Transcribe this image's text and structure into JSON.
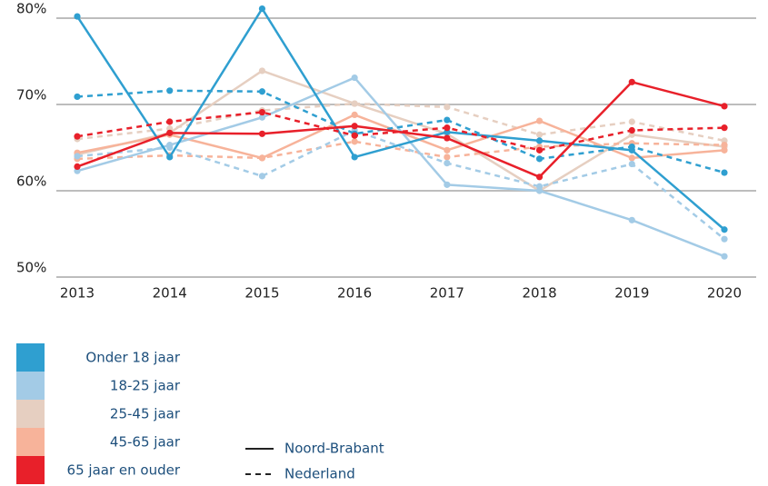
{
  "chart_data": {
    "type": "line",
    "categories": [
      "2013",
      "2014",
      "2015",
      "2016",
      "2017",
      "2018",
      "2019",
      "2020"
    ],
    "ylim": [
      50,
      80
    ],
    "yticks": [
      {
        "value": 50,
        "label": "50%"
      },
      {
        "value": 60,
        "label": "60%"
      },
      {
        "value": 70,
        "label": "70%"
      },
      {
        "value": 80,
        "label": "80%"
      }
    ],
    "grid": true,
    "legend": {
      "groups": [
        {
          "name": "Onder 18 jaar",
          "color": "#2f9fd0"
        },
        {
          "name": "18-25 jaar",
          "color": "#a3cbe6"
        },
        {
          "name": "25-45 jaar",
          "color": "#e6cfc1"
        },
        {
          "name": "45-65 jaar",
          "color": "#f7b39a"
        },
        {
          "name": "65 jaar en ouder",
          "color": "#e8202a"
        }
      ],
      "styles": [
        {
          "name": "Noord-Brabant",
          "dashed": false
        },
        {
          "name": "Nederland",
          "dashed": true
        }
      ]
    },
    "series": [
      {
        "group": 2,
        "style": 1,
        "values": [
          66,
          67.2,
          69.3,
          70.1,
          69.7,
          66.5,
          68,
          65.8
        ]
      },
      {
        "group": 2,
        "style": 0,
        "values": [
          64.2,
          66.7,
          73.9,
          70.1,
          66.6,
          60,
          66.5,
          65.1
        ]
      },
      {
        "group": 3,
        "style": 1,
        "values": [
          63.7,
          64.1,
          63.8,
          65.7,
          63.9,
          65.1,
          65.5,
          65.3
        ]
      },
      {
        "group": 3,
        "style": 0,
        "values": [
          64.4,
          66.5,
          63.8,
          68.8,
          64.7,
          68.1,
          63.8,
          64.7
        ]
      },
      {
        "group": 1,
        "style": 1,
        "values": [
          64,
          65,
          61.7,
          67,
          63.2,
          60.5,
          63.1,
          54.4
        ]
      },
      {
        "group": 1,
        "style": 0,
        "values": [
          62.3,
          65.3,
          68.5,
          73.1,
          60.7,
          60,
          56.6,
          52.4
        ]
      },
      {
        "group": 0,
        "style": 1,
        "values": [
          70.9,
          71.6,
          71.5,
          66.6,
          68.2,
          63.7,
          65.1,
          62.1
        ]
      },
      {
        "group": 0,
        "style": 0,
        "values": [
          80.2,
          63.9,
          81.1,
          63.9,
          66.8,
          65.8,
          64.7,
          55.5
        ]
      },
      {
        "group": 4,
        "style": 1,
        "values": [
          66.3,
          68,
          69.1,
          66.4,
          67.3,
          64.7,
          67,
          67.3
        ]
      },
      {
        "group": 4,
        "style": 0,
        "values": [
          62.8,
          66.7,
          66.6,
          67.5,
          66.1,
          61.6,
          72.6,
          69.8
        ]
      }
    ]
  }
}
